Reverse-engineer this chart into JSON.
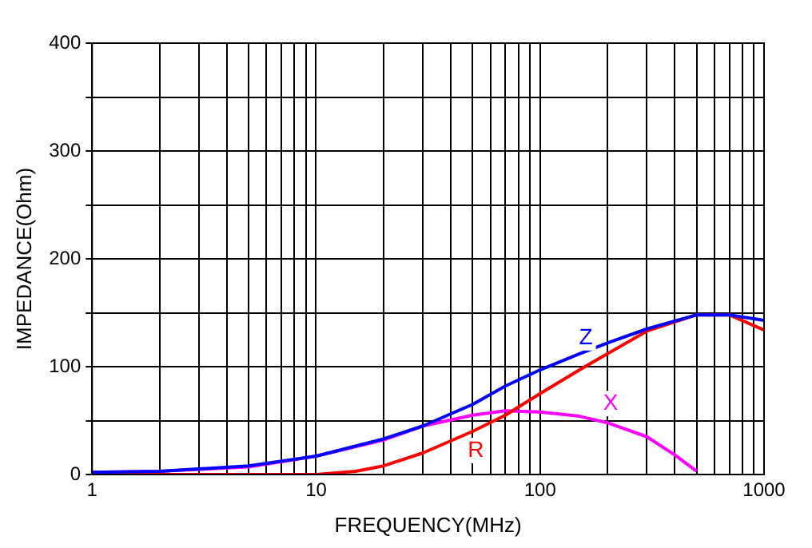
{
  "chart_data": {
    "type": "line",
    "xlabel": "FREQUENCY(MHz)",
    "ylabel": "IMPEDANCE(Ohm)",
    "log": "x",
    "grid": true,
    "legend": false,
    "marker": "none",
    "xlim": [
      1,
      1000
    ],
    "ylim": [
      0,
      400
    ],
    "xticks": [
      1,
      {
        "value": 2,
        "label": null
      },
      {
        "value": 3,
        "label": null
      },
      {
        "value": 4,
        "label": null
      },
      {
        "value": 5,
        "label": null
      },
      {
        "value": 6,
        "label": null
      },
      {
        "value": 7,
        "label": null
      },
      {
        "value": 8,
        "label": null
      },
      {
        "value": 9,
        "label": null
      },
      10,
      {
        "value": 20,
        "label": null
      },
      {
        "value": 30,
        "label": null
      },
      {
        "value": 40,
        "label": null
      },
      {
        "value": 50,
        "label": null
      },
      {
        "value": 60,
        "label": null
      },
      {
        "value": 70,
        "label": null
      },
      {
        "value": 80,
        "label": null
      },
      {
        "value": 90,
        "label": null
      },
      100,
      {
        "value": 200,
        "label": null
      },
      {
        "value": 300,
        "label": null
      },
      {
        "value": 400,
        "label": null
      },
      {
        "value": 500,
        "label": null
      },
      {
        "value": 600,
        "label": null
      },
      {
        "value": 700,
        "label": null
      },
      {
        "value": 800,
        "label": null
      },
      {
        "value": 900,
        "label": null
      },
      1000
    ],
    "yticks": [
      0,
      {
        "value": 50,
        "label": null
      },
      100,
      {
        "value": 150,
        "label": null
      },
      200,
      {
        "value": 250,
        "label": null
      },
      300,
      {
        "value": 350,
        "label": null
      },
      400
    ],
    "series": [
      {
        "name": "Z",
        "color": "#0000ff",
        "x": [
          1,
          2,
          5,
          10,
          20,
          30,
          50,
          70,
          100,
          150,
          200,
          300,
          500,
          700,
          1000
        ],
        "values": [
          2,
          3,
          8,
          17,
          33,
          45,
          65,
          82,
          97,
          112,
          122,
          135,
          148,
          148,
          143
        ]
      },
      {
        "name": "R",
        "color": "#ff0000",
        "x": [
          1,
          5,
          10,
          15,
          20,
          30,
          50,
          70,
          100,
          150,
          200,
          300,
          500,
          700,
          1000
        ],
        "values": [
          0,
          0,
          0,
          3,
          8,
          20,
          40,
          55,
          75,
          97,
          112,
          133,
          148,
          148,
          134
        ]
      },
      {
        "name": "X",
        "color": "#ff00ff",
        "x": [
          1,
          2,
          5,
          10,
          20,
          30,
          50,
          70,
          100,
          150,
          200,
          300,
          400,
          500
        ],
        "values": [
          2,
          3,
          7,
          17,
          32,
          45,
          55,
          59,
          58,
          54,
          48,
          35,
          18,
          3
        ]
      }
    ]
  }
}
